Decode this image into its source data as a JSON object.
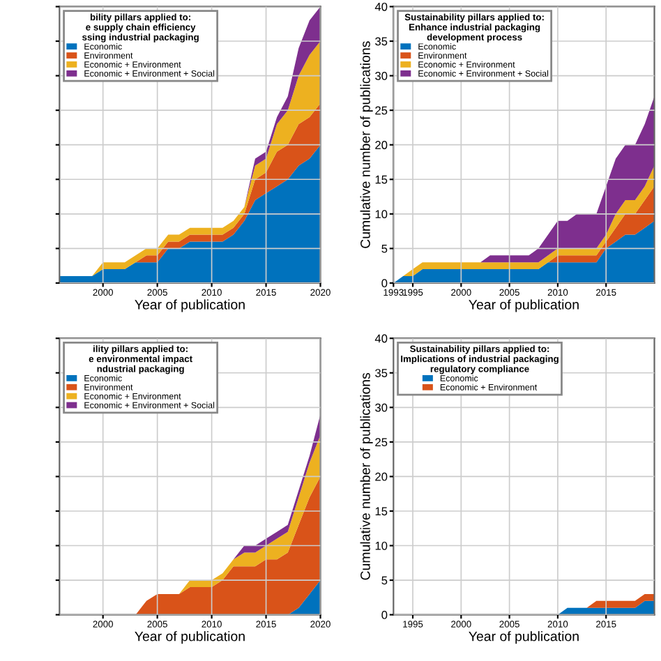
{
  "chart_data": [
    {
      "type": "area",
      "stacked": true,
      "legend_title": "bility pillars applied to:\ne supply chain efficiency\nssing industrial packaging",
      "xlabel": "Year of publication",
      "x": [
        1996,
        1997,
        1998,
        1999,
        2000,
        2001,
        2002,
        2003,
        2004,
        2005,
        2006,
        2007,
        2008,
        2009,
        2010,
        2011,
        2012,
        2013,
        2014,
        2015,
        2016,
        2017,
        2018,
        2019,
        2020
      ],
      "xlim": [
        1996,
        2020
      ],
      "xticks": [
        2000,
        2005,
        2010,
        2015,
        2020
      ],
      "ylim": [
        0,
        40
      ],
      "yticks": [
        0,
        5,
        10,
        15,
        20,
        25,
        30,
        35,
        40
      ],
      "tick_labels": "x",
      "grid": true,
      "legend": "top left",
      "series": [
        {
          "name": "Economic",
          "color": "#0072bd",
          "values": [
            1,
            1,
            1,
            1,
            2,
            2,
            2,
            3,
            3,
            3,
            5,
            5,
            6,
            6,
            6,
            6,
            7,
            9,
            12,
            13,
            14,
            15,
            17,
            18,
            20
          ]
        },
        {
          "name": "Environment",
          "color": "#d95319",
          "values": [
            0,
            0,
            0,
            0,
            0,
            0,
            0,
            0,
            1,
            1,
            1,
            1,
            1,
            1,
            1,
            1,
            1,
            1,
            3,
            3,
            5,
            5,
            6,
            6,
            6
          ]
        },
        {
          "name": "Economic + Environment",
          "color": "#edb120",
          "values": [
            0,
            0,
            0,
            0,
            1,
            1,
            1,
            1,
            1,
            1,
            1,
            1,
            1,
            1,
            1,
            1,
            1,
            1,
            2,
            2,
            4,
            5,
            7,
            9,
            9
          ]
        },
        {
          "name": "Economic + Environment + Social",
          "color": "#7e2f8e",
          "values": [
            0,
            0,
            0,
            0,
            0,
            0,
            0,
            0,
            0,
            0,
            0,
            0,
            0,
            0,
            0,
            0,
            0,
            0,
            1,
            1,
            1,
            2,
            4,
            5,
            5
          ]
        }
      ]
    },
    {
      "type": "area",
      "stacked": true,
      "legend_title": "Sustainability pillars applied to:\nEnhance industrial packaging\ndevelopment process",
      "xlabel": "Year of publication",
      "ylabel": "Cumulative number of publications",
      "x": [
        1993,
        1994,
        1995,
        1996,
        1997,
        1998,
        1999,
        2000,
        2001,
        2002,
        2003,
        2004,
        2005,
        2006,
        2007,
        2008,
        2009,
        2010,
        2011,
        2012,
        2013,
        2014,
        2015,
        2016,
        2017,
        2018,
        2019,
        2020
      ],
      "xlim": [
        1993,
        2020
      ],
      "xticks": [
        1993,
        1995,
        2000,
        2005,
        2010,
        2015
      ],
      "ylim": [
        0,
        40
      ],
      "yticks": [
        0,
        5,
        10,
        15,
        20,
        25,
        30,
        35,
        40
      ],
      "grid": true,
      "legend": "top left",
      "series": [
        {
          "name": "Economic",
          "color": "#0072bd",
          "values": [
            0,
            1,
            1,
            2,
            2,
            2,
            2,
            2,
            2,
            2,
            2,
            2,
            2,
            2,
            2,
            2,
            3,
            3,
            3,
            3,
            3,
            3,
            5,
            6,
            7,
            7,
            8,
            9
          ]
        },
        {
          "name": "Environment",
          "color": "#d95319",
          "values": [
            0,
            0,
            0,
            0,
            0,
            0,
            0,
            0,
            0,
            0,
            0,
            0,
            0,
            0,
            0,
            0,
            0,
            1,
            1,
            1,
            1,
            1,
            1,
            2,
            3,
            3,
            4,
            5
          ]
        },
        {
          "name": "Economic + Environment",
          "color": "#edb120",
          "values": [
            0,
            0,
            1,
            1,
            1,
            1,
            1,
            1,
            1,
            1,
            1,
            1,
            1,
            1,
            1,
            1,
            1,
            1,
            1,
            1,
            1,
            1,
            1,
            2,
            2,
            2,
            2,
            3
          ]
        },
        {
          "name": "Economic + Environment + Social",
          "color": "#7e2f8e",
          "values": [
            0,
            0,
            0,
            0,
            0,
            0,
            0,
            0,
            0,
            0,
            1,
            1,
            1,
            1,
            1,
            2,
            3,
            4,
            4,
            5,
            5,
            5,
            7,
            8,
            8,
            8,
            9,
            10
          ]
        }
      ]
    },
    {
      "type": "area",
      "stacked": true,
      "legend_title": "ility pillars applied to:\ne environmental impact\nndustrial packaging",
      "xlabel": "Year of publication",
      "x": [
        1996,
        1997,
        1998,
        1999,
        2000,
        2001,
        2002,
        2003,
        2004,
        2005,
        2006,
        2007,
        2008,
        2009,
        2010,
        2011,
        2012,
        2013,
        2014,
        2015,
        2016,
        2017,
        2018,
        2019,
        2020
      ],
      "xlim": [
        1996,
        2020
      ],
      "xticks": [
        2000,
        2005,
        2010,
        2015,
        2020
      ],
      "ylim": [
        0,
        40
      ],
      "yticks": [
        0,
        5,
        10,
        15,
        20,
        25,
        30,
        35,
        40
      ],
      "tick_labels": "x",
      "grid": true,
      "legend": "top left",
      "series": [
        {
          "name": "Economic",
          "color": "#0072bd",
          "values": [
            0,
            0,
            0,
            0,
            0,
            0,
            0,
            0,
            0,
            0,
            0,
            0,
            0,
            0,
            0,
            0,
            0,
            0,
            0,
            0,
            0,
            0,
            1,
            3,
            5
          ]
        },
        {
          "name": "Environment",
          "color": "#d95319",
          "values": [
            0,
            0,
            0,
            0,
            0,
            0,
            0,
            0,
            2,
            3,
            3,
            3,
            4,
            4,
            4,
            5,
            7,
            7,
            7,
            8,
            8,
            9,
            12,
            14,
            15
          ]
        },
        {
          "name": "Economic + Environment",
          "color": "#edb120",
          "values": [
            0,
            0,
            0,
            0,
            0,
            0,
            0,
            0,
            0,
            0,
            0,
            0,
            1,
            1,
            1,
            1,
            1,
            2,
            2,
            2,
            3,
            3,
            4,
            5,
            6
          ]
        },
        {
          "name": "Economic + Environment + Social",
          "color": "#7e2f8e",
          "values": [
            0,
            0,
            0,
            0,
            0,
            0,
            0,
            0,
            0,
            0,
            0,
            0,
            0,
            0,
            0,
            0,
            0,
            1,
            1,
            1,
            1,
            1,
            1,
            1,
            3
          ]
        }
      ]
    },
    {
      "type": "area",
      "stacked": true,
      "legend_title": "Sustainability pillars applied to:\nImplications of industrial packaging\nregulatory compliance",
      "xlabel": "Year of publication",
      "ylabel": "Cumulative number of publications",
      "x": [
        1993,
        1994,
        1995,
        1996,
        1997,
        1998,
        1999,
        2000,
        2001,
        2002,
        2003,
        2004,
        2005,
        2006,
        2007,
        2008,
        2009,
        2010,
        2011,
        2012,
        2013,
        2014,
        2015,
        2016,
        2017,
        2018,
        2019,
        2020
      ],
      "xlim": [
        1993,
        2020
      ],
      "xticks": [
        1995,
        2000,
        2005,
        2010,
        2015
      ],
      "ylim": [
        0,
        40
      ],
      "yticks": [
        0,
        5,
        10,
        15,
        20,
        25,
        30,
        35,
        40
      ],
      "grid": true,
      "legend": "top left",
      "series": [
        {
          "name": "Economic",
          "color": "#0072bd",
          "values": [
            0,
            0,
            0,
            0,
            0,
            0,
            0,
            0,
            0,
            0,
            0,
            0,
            0,
            0,
            0,
            0,
            0,
            0,
            1,
            1,
            1,
            1,
            1,
            1,
            1,
            1,
            2,
            2
          ]
        },
        {
          "name": "Economic + Environment",
          "color": "#d95319",
          "values": [
            0,
            0,
            0,
            0,
            0,
            0,
            0,
            0,
            0,
            0,
            0,
            0,
            0,
            0,
            0,
            0,
            0,
            0,
            0,
            0,
            0,
            1,
            1,
            1,
            1,
            1,
            1,
            1
          ]
        }
      ]
    }
  ]
}
